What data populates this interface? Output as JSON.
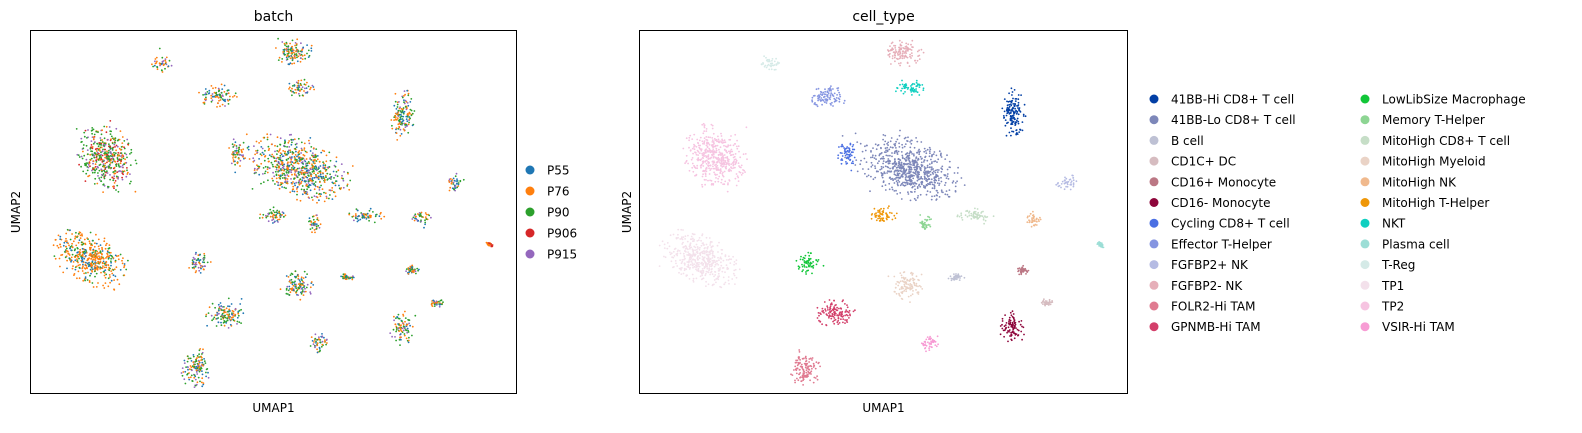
{
  "chart_data": [
    {
      "type": "scatter",
      "title": "batch",
      "xlabel": "UMAP1",
      "ylabel": "UMAP2",
      "xlim": [
        0,
        100
      ],
      "ylim": [
        0,
        100
      ],
      "grid": false,
      "legend_position": "right",
      "series": [
        {
          "name": "P55",
          "color": "#1f77b4"
        },
        {
          "name": "P76",
          "color": "#ff7f0e"
        },
        {
          "name": "P90",
          "color": "#2ca02c"
        },
        {
          "name": "P906",
          "color": "#d62728"
        },
        {
          "name": "P915",
          "color": "#9467bd"
        }
      ]
    },
    {
      "type": "scatter",
      "title": "cell_type",
      "xlabel": "UMAP1",
      "ylabel": "UMAP2",
      "xlim": [
        0,
        100
      ],
      "ylim": [
        0,
        100
      ],
      "grid": false,
      "legend_position": "right",
      "series": [
        {
          "name": "41BB-Hi CD8+ T cell",
          "color": "#023fa5",
          "clusters": [
            {
              "x": 76.5,
              "y": 77,
              "w": 5,
              "h": 14
            }
          ]
        },
        {
          "name": "41BB-Lo CD8+ T cell",
          "color": "#7d87b9",
          "clusters": [
            {
              "x": 55,
              "y": 62,
              "w": 22,
              "h": 16,
              "rot": 20
            }
          ]
        },
        {
          "name": "B cell",
          "color": "#bec1d4",
          "clusters": [
            {
              "x": 65,
              "y": 32,
              "w": 3,
              "h": 2
            }
          ]
        },
        {
          "name": "CD1C+ DC",
          "color": "#d6bcc0",
          "clusters": [
            {
              "x": 83.5,
              "y": 25,
              "w": 3,
              "h": 2
            }
          ]
        },
        {
          "name": "CD16+ Monocyte",
          "color": "#bb7784",
          "clusters": [
            {
              "x": 78.5,
              "y": 34,
              "w": 3,
              "h": 2.5
            }
          ]
        },
        {
          "name": "CD16- Monocyte",
          "color": "#8e063b",
          "clusters": [
            {
              "x": 76.5,
              "y": 18,
              "w": 5,
              "h": 9
            }
          ]
        },
        {
          "name": "Cycling CD8+ T cell",
          "color": "#4a6fe3",
          "clusters": [
            {
              "x": 42.5,
              "y": 66,
              "w": 4,
              "h": 8
            }
          ]
        },
        {
          "name": "Effector T-Helper",
          "color": "#8595e1",
          "clusters": [
            {
              "x": 38.5,
              "y": 82,
              "w": 8,
              "h": 6
            }
          ]
        },
        {
          "name": "FGFBP2+ NK",
          "color": "#b5bbe3",
          "clusters": [
            {
              "x": 87.5,
              "y": 58,
              "w": 4,
              "h": 5,
              "rot": -30
            }
          ]
        },
        {
          "name": "FGFBP2- NK",
          "color": "#e6afb9",
          "clusters": [
            {
              "x": 54,
              "y": 94,
              "w": 8,
              "h": 8
            }
          ]
        },
        {
          "name": "FOLR2-Hi TAM",
          "color": "#e07b91",
          "clusters": [
            {
              "x": 34,
              "y": 7,
              "w": 6,
              "h": 11
            }
          ]
        },
        {
          "name": "GPNMB-Hi TAM",
          "color": "#d33f6a",
          "clusters": [
            {
              "x": 40,
              "y": 22,
              "w": 8,
              "h": 8
            }
          ]
        },
        {
          "name": "LowLibSize Macrophage",
          "color": "#11c638",
          "clusters": [
            {
              "x": 34.5,
              "y": 36,
              "w": 5,
              "h": 6
            }
          ]
        },
        {
          "name": "Memory T-Helper",
          "color": "#8dd593",
          "clusters": [
            {
              "x": 58.5,
              "y": 47,
              "w": 2.6,
              "h": 6
            }
          ]
        },
        {
          "name": "MitoHigh CD8+ T cell",
          "color": "#c6dec7",
          "clusters": [
            {
              "x": 69,
              "y": 49,
              "w": 8,
              "h": 4
            }
          ]
        },
        {
          "name": "MitoHigh Myeloid",
          "color": "#ead3c6",
          "clusters": [
            {
              "x": 55,
              "y": 30,
              "w": 7,
              "h": 8
            }
          ]
        },
        {
          "name": "MitoHigh NK",
          "color": "#f0b98d",
          "clusters": [
            {
              "x": 80.5,
              "y": 48,
              "w": 4,
              "h": 4.5
            }
          ]
        },
        {
          "name": "MitoHigh T-Helper",
          "color": "#ef9708",
          "clusters": [
            {
              "x": 50,
              "y": 49,
              "w": 6,
              "h": 5
            }
          ]
        },
        {
          "name": "NKT",
          "color": "#0fcfc0",
          "clusters": [
            {
              "x": 55.5,
              "y": 84,
              "w": 6,
              "h": 5
            }
          ]
        },
        {
          "name": "Plasma cell",
          "color": "#9cded6",
          "clusters": [
            {
              "x": 94.5,
              "y": 41,
              "w": 1.6,
              "h": 1.2,
              "rot": 35
            }
          ]
        },
        {
          "name": "T-Reg",
          "color": "#d5eae7",
          "clusters": [
            {
              "x": 27,
              "y": 91,
              "w": 4,
              "h": 5
            }
          ]
        },
        {
          "name": "TP1",
          "color": "#f3e1eb",
          "clusters": [
            {
              "x": 12.5,
              "y": 37,
              "w": 17,
              "h": 13,
              "rot": 28
            }
          ]
        },
        {
          "name": "TP2",
          "color": "#f6c4e1",
          "clusters": [
            {
              "x": 15.5,
              "y": 65,
              "w": 12,
              "h": 19,
              "rot": -30
            }
          ]
        },
        {
          "name": "VSIR-Hi TAM",
          "color": "#f79cd4",
          "clusters": [
            {
              "x": 59.5,
              "y": 14,
              "w": 4,
              "h": 6
            }
          ]
        }
      ]
    }
  ]
}
